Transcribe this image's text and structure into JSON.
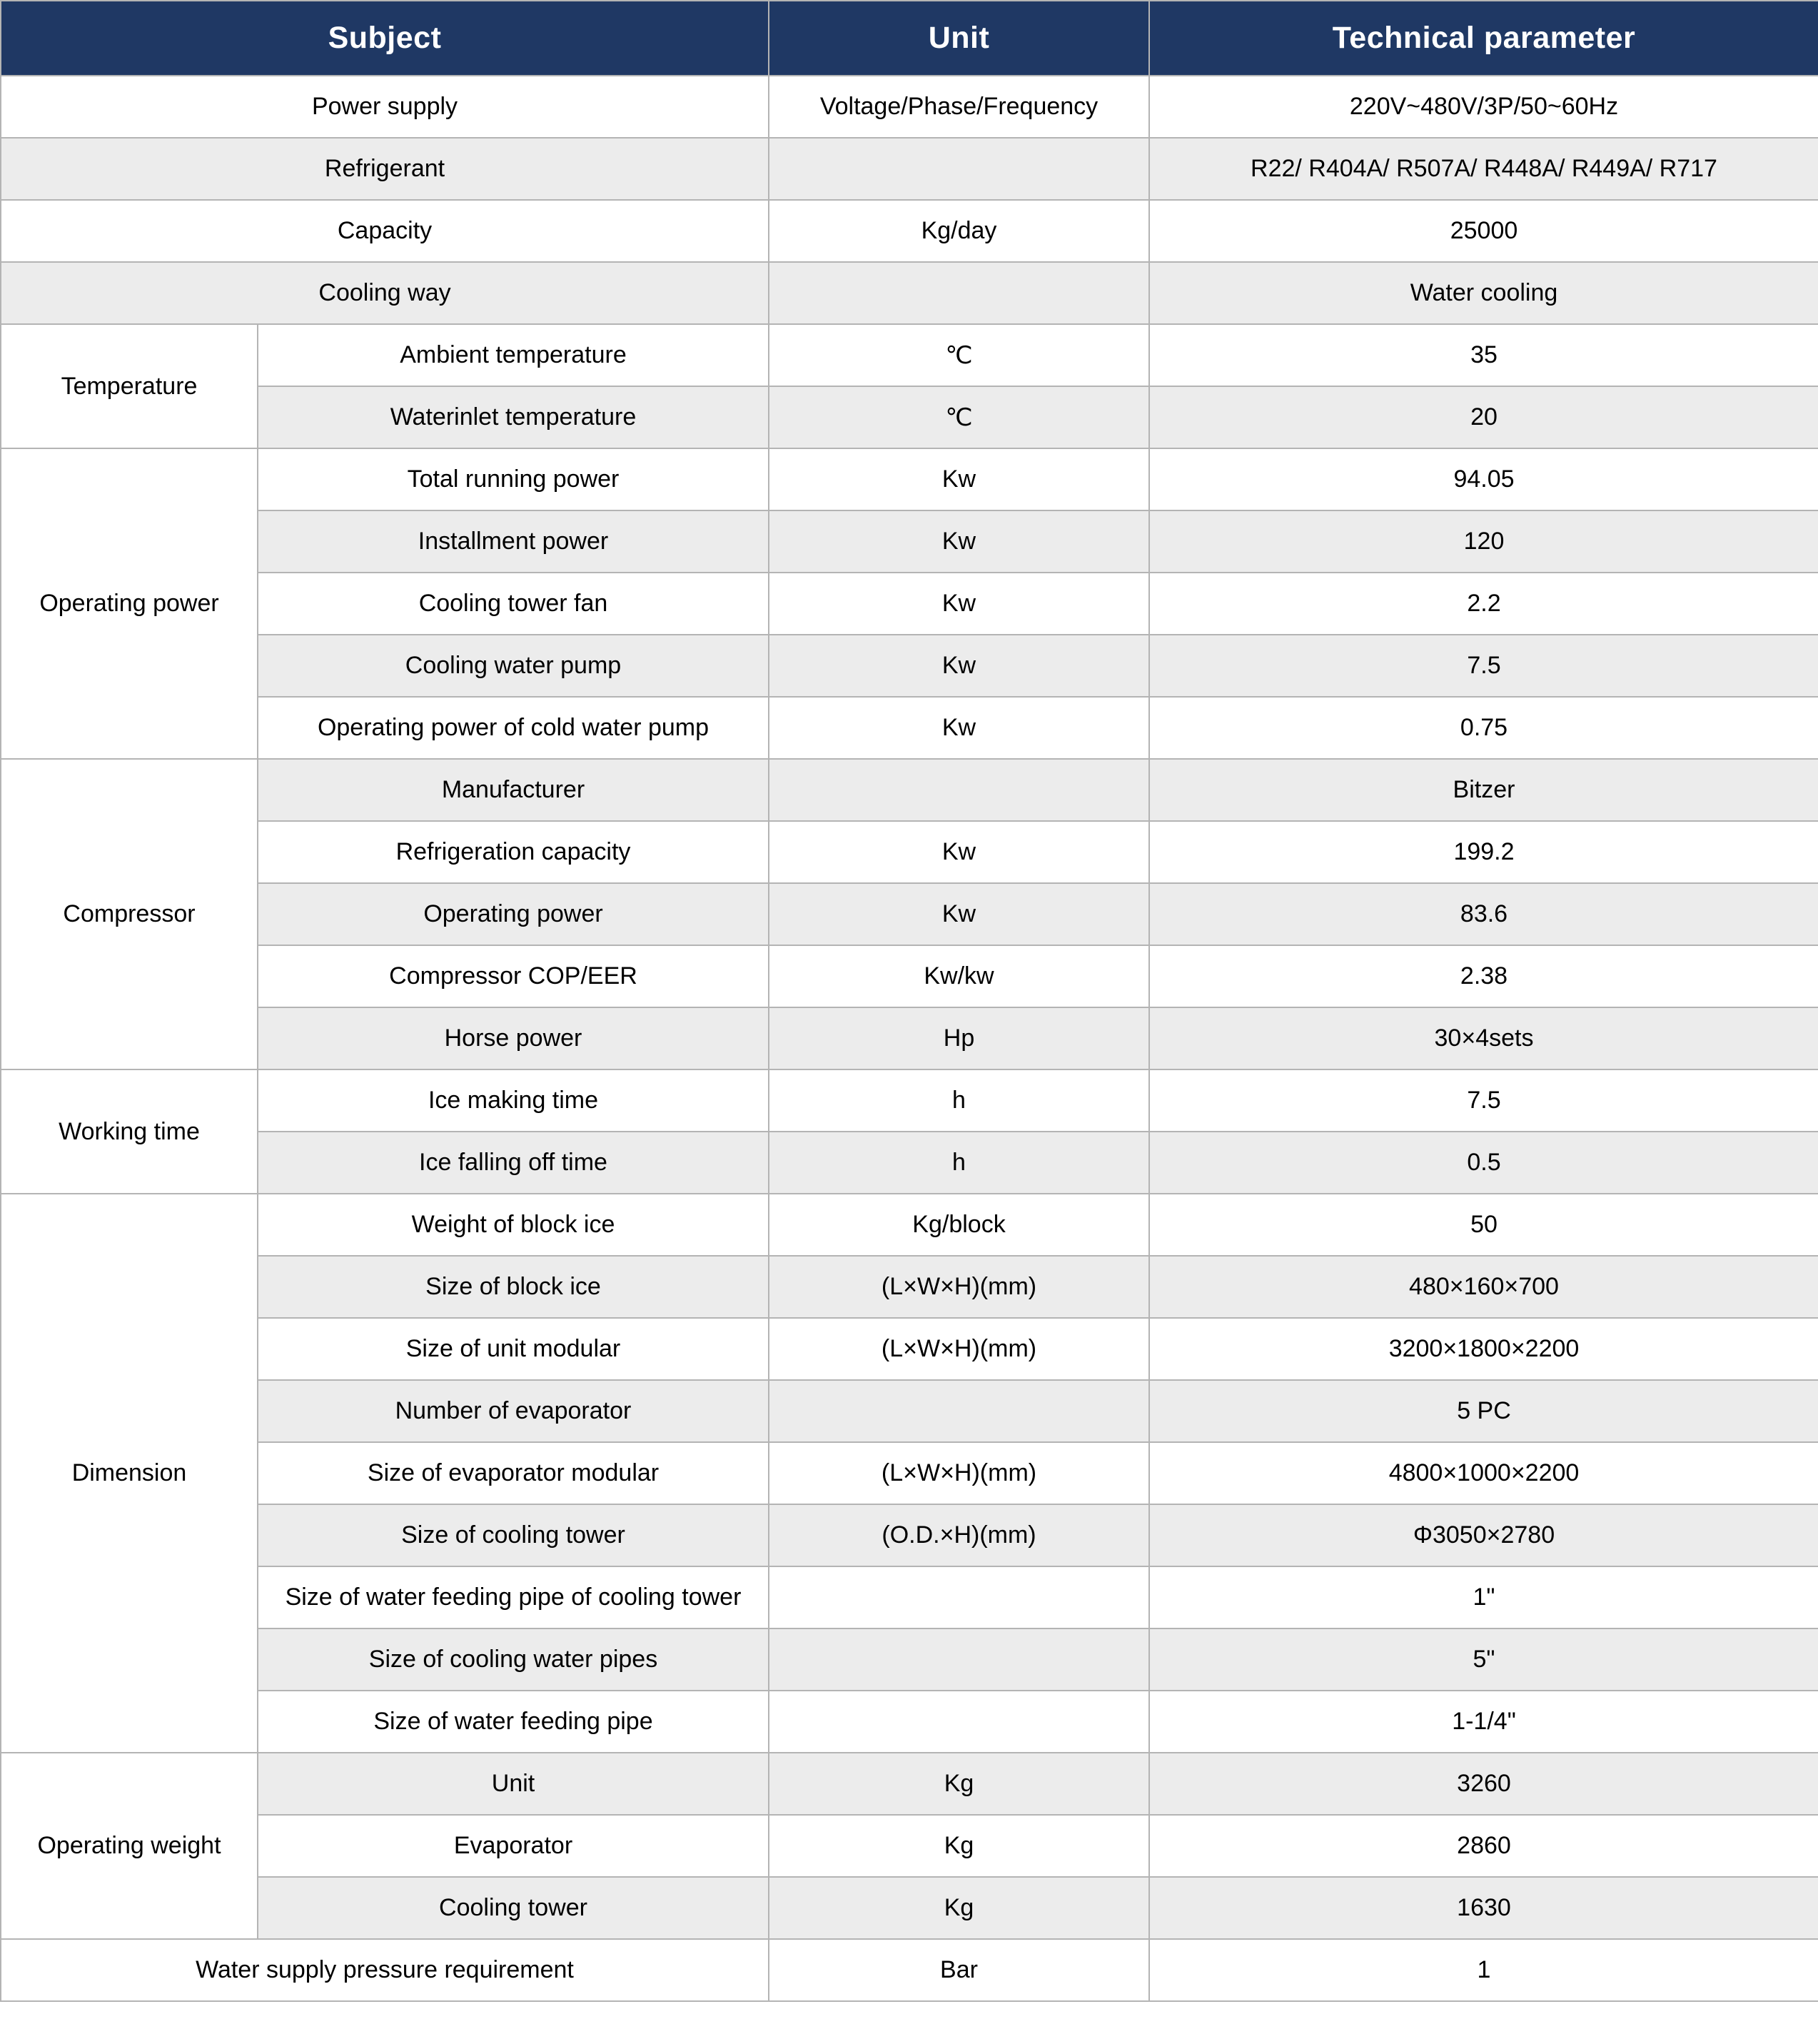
{
  "header": {
    "subject": "Subject",
    "unit": "Unit",
    "parameter": "Technical parameter"
  },
  "colors": {
    "header_bg": "#1f3864",
    "header_text": "#ffffff",
    "row_stripe_bg": "#ececec",
    "row_bg": "#ffffff",
    "border": "#b4b4b4"
  },
  "sections": [
    {
      "subject": "Power supply",
      "unit": "Voltage/Phase/Frequency",
      "value": "220V~480V/3P/50~60Hz"
    },
    {
      "subject": "Refrigerant",
      "unit": "",
      "value": "R22/ R404A/ R507A/ R448A/ R449A/ R717"
    },
    {
      "subject": "Capacity",
      "unit": "Kg/day",
      "value": "25000"
    },
    {
      "subject": "Cooling way",
      "unit": "",
      "value": "Water cooling"
    },
    {
      "subject": "Temperature",
      "rows": [
        {
          "label": "Ambient temperature",
          "unit": "℃",
          "value": "35"
        },
        {
          "label": "Waterinlet temperature",
          "unit": "℃",
          "value": "20"
        }
      ]
    },
    {
      "subject": "Operating power",
      "rows": [
        {
          "label": "Total running power",
          "unit": "Kw",
          "value": "94.05"
        },
        {
          "label": "Installment power",
          "unit": "Kw",
          "value": "120"
        },
        {
          "label": "Cooling tower fan",
          "unit": "Kw",
          "value": "2.2"
        },
        {
          "label": "Cooling water pump",
          "unit": "Kw",
          "value": "7.5"
        },
        {
          "label": "Operating power of cold water pump",
          "unit": "Kw",
          "value": "0.75"
        }
      ]
    },
    {
      "subject": "Compressor",
      "rows": [
        {
          "label": "Manufacturer",
          "unit": "",
          "value": "Bitzer"
        },
        {
          "label": "Refrigeration capacity",
          "unit": "Kw",
          "value": "199.2"
        },
        {
          "label": "Operating power",
          "unit": "Kw",
          "value": "83.6"
        },
        {
          "label": "Compressor COP/EER",
          "unit": "Kw/kw",
          "value": "2.38"
        },
        {
          "label": "Horse power",
          "unit": "Hp",
          "value": "30×4sets"
        }
      ]
    },
    {
      "subject": "Working time",
      "rows": [
        {
          "label": "Ice making time",
          "unit": "h",
          "value": "7.5"
        },
        {
          "label": "Ice falling off time",
          "unit": "h",
          "value": "0.5"
        }
      ]
    },
    {
      "subject": "Dimension",
      "rows": [
        {
          "label": "Weight of block ice",
          "unit": "Kg/block",
          "value": "50"
        },
        {
          "label": "Size of block ice",
          "unit": "(L×W×H)(mm)",
          "value": "480×160×700"
        },
        {
          "label": "Size of unit modular",
          "unit": "(L×W×H)(mm)",
          "value": "3200×1800×2200"
        },
        {
          "label": "Number of evaporator",
          "unit": "",
          "value": "5 PC"
        },
        {
          "label": "Size of evaporator modular",
          "unit": "(L×W×H)(mm)",
          "value": "4800×1000×2200"
        },
        {
          "label": "Size of cooling tower",
          "unit": "(O.D.×H)(mm)",
          "value": "Φ3050×2780"
        },
        {
          "label": "Size of water feeding pipe of cooling tower",
          "unit": "",
          "value": "1\""
        },
        {
          "label": "Size of cooling water pipes",
          "unit": "",
          "value": "5\""
        },
        {
          "label": "Size of water feeding pipe",
          "unit": "",
          "value": "1-1/4\""
        }
      ]
    },
    {
      "subject": "Operating weight",
      "rows": [
        {
          "label": "Unit",
          "unit": "Kg",
          "value": "3260"
        },
        {
          "label": "Evaporator",
          "unit": "Kg",
          "value": "2860"
        },
        {
          "label": "Cooling tower",
          "unit": "Kg",
          "value": "1630"
        }
      ]
    },
    {
      "subject": "Water supply pressure requirement",
      "unit": "Bar",
      "value": "1"
    }
  ]
}
